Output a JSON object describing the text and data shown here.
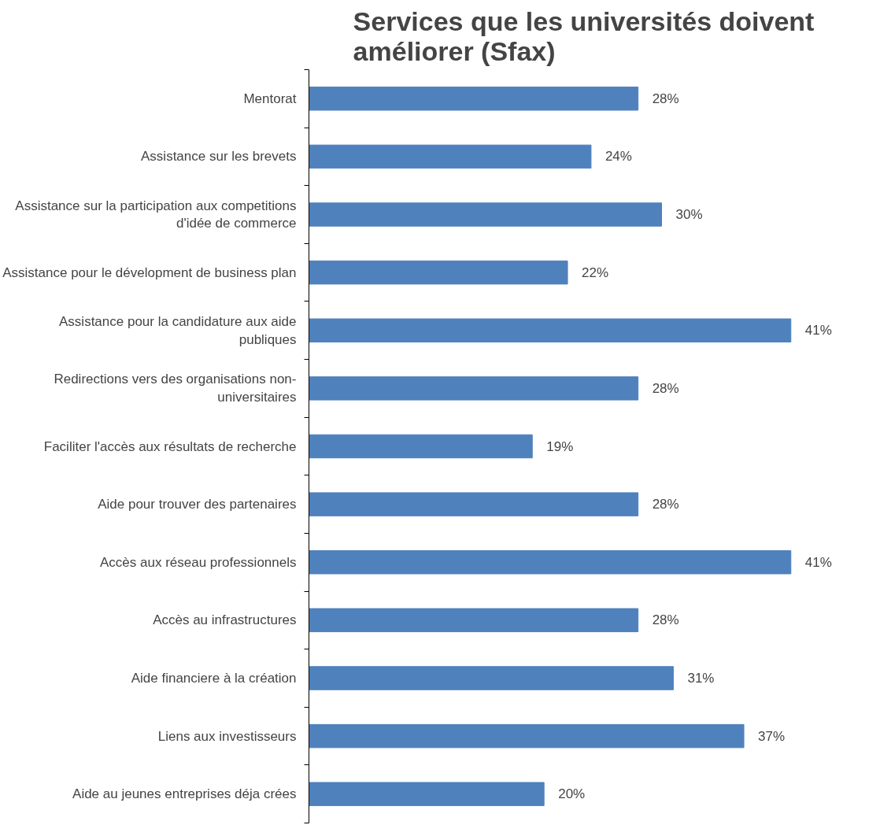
{
  "chart_data": {
    "type": "bar",
    "orientation": "horizontal",
    "title": "Services que les universités doivent améliorer (Sfax)",
    "categories": [
      "Mentorat",
      "Assistance sur les brevets",
      "Assistance sur la participation aux competitions\nd'idée de commerce",
      "Assistance pour le dévelopment de business plan",
      "Assistance pour la candidature aux aide\npubliques",
      "Redirections vers des organisations non-\nuniversitaires",
      "Faciliter l'accès aux résultats de recherche",
      "Aide pour trouver des partenaires",
      "Accès aux réseau professionnels",
      "Accès au infrastructures",
      "Aide financiere à la création",
      "Liens aux investisseurs",
      "Aide au jeunes entreprises déja crées"
    ],
    "values": [
      28,
      24,
      30,
      22,
      41,
      28,
      19,
      28,
      41,
      28,
      31,
      37,
      20
    ],
    "value_labels": [
      "28%",
      "24%",
      "30%",
      "22%",
      "41%",
      "28%",
      "19%",
      "28%",
      "41%",
      "28%",
      "31%",
      "37%",
      "20%"
    ],
    "color": "#4f81bd",
    "grid": false
  }
}
